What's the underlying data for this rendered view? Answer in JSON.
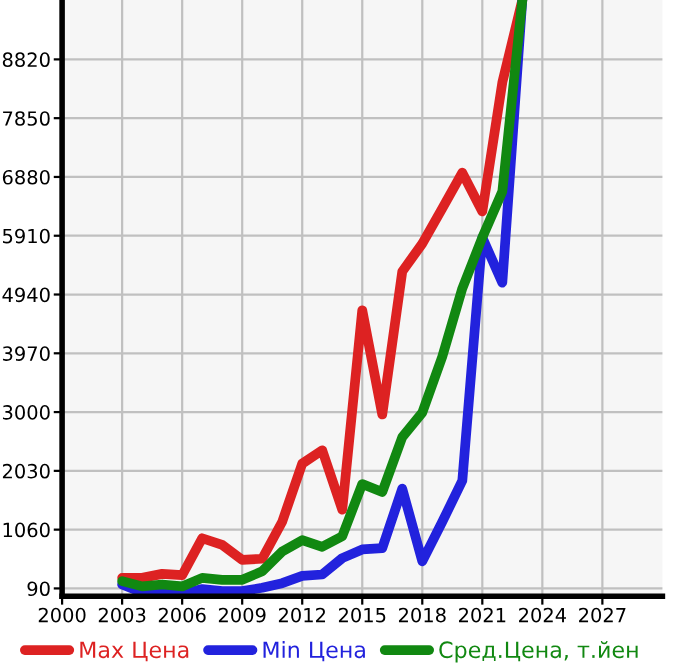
{
  "chart_data": {
    "type": "line",
    "x": [
      2003,
      2004,
      2005,
      2006,
      2007,
      2008,
      2009,
      2010,
      2011,
      2012,
      2013,
      2014,
      2015,
      2016,
      2017,
      2018,
      2019,
      2020,
      2021,
      2022,
      2023
    ],
    "series": [
      {
        "name": "Max Цена",
        "color": "#dd2222",
        "values": [
          264,
          264,
          330,
          308,
          918,
          810,
          560,
          580,
          1190,
          2150,
          2370,
          1390,
          4680,
          2960,
          5320,
          5780,
          6360,
          6950,
          6310,
          8440,
          9800
        ]
      },
      {
        "name": "Min Цена",
        "color": "#2222dd",
        "values": [
          155,
          25,
          46,
          0,
          80,
          46,
          46,
          100,
          177,
          297,
          320,
          590,
          733,
          755,
          1736,
          537,
          1190,
          1867,
          5880,
          5135,
          9800
        ]
      },
      {
        "name": "Сред.Цена, т.йен",
        "color": "#118811",
        "values": [
          210,
          123,
          155,
          123,
          264,
          232,
          232,
          373,
          700,
          886,
          777,
          951,
          1812,
          1681,
          2586,
          2990,
          3916,
          5040,
          5880,
          6640,
          9800
        ]
      }
    ],
    "xlim": [
      2000,
      2030
    ],
    "xticks": [
      2000,
      2003,
      2006,
      2009,
      2012,
      2015,
      2018,
      2021,
      2024,
      2027
    ],
    "ylim": [
      -40,
      9800
    ],
    "yticks": [
      90,
      1060,
      2030,
      3000,
      3970,
      4940,
      5910,
      6880,
      7850,
      8820
    ],
    "grid": true,
    "legend": "bottom"
  }
}
